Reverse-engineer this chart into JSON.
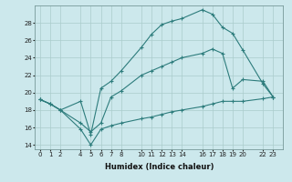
{
  "xlabel": "Humidex (Indice chaleur)",
  "background_color": "#cce8ec",
  "grid_color": "#aacccc",
  "line_color": "#2d7c7c",
  "x_ticks": [
    0,
    1,
    2,
    4,
    5,
    6,
    7,
    8,
    10,
    11,
    12,
    13,
    14,
    16,
    17,
    18,
    19,
    20,
    22,
    23
  ],
  "ylim": [
    13.5,
    30.0
  ],
  "xlim": [
    -0.5,
    24.0
  ],
  "yticks": [
    14,
    16,
    18,
    20,
    22,
    24,
    26,
    28
  ],
  "series": [
    {
      "x": [
        0,
        1,
        2,
        4,
        5,
        6,
        7,
        8,
        10,
        11,
        12,
        13,
        14,
        16,
        17,
        18,
        19,
        20,
        22,
        23
      ],
      "y": [
        19.2,
        18.7,
        18.0,
        19.0,
        15.2,
        20.5,
        21.3,
        22.5,
        25.2,
        26.7,
        27.8,
        28.2,
        28.5,
        29.5,
        29.0,
        27.5,
        26.8,
        24.9,
        21.0,
        19.5
      ]
    },
    {
      "x": [
        0,
        1,
        2,
        4,
        5,
        6,
        7,
        8,
        10,
        11,
        12,
        13,
        14,
        16,
        17,
        18,
        19,
        20,
        22,
        23
      ],
      "y": [
        19.2,
        18.7,
        18.0,
        16.5,
        15.5,
        16.5,
        19.5,
        20.2,
        22.0,
        22.5,
        23.0,
        23.5,
        24.0,
        24.5,
        25.0,
        24.5,
        20.5,
        21.5,
        21.3,
        19.5
      ]
    },
    {
      "x": [
        0,
        1,
        2,
        4,
        5,
        6,
        7,
        8,
        10,
        11,
        12,
        13,
        14,
        16,
        17,
        18,
        19,
        20,
        22,
        23
      ],
      "y": [
        19.2,
        18.7,
        18.0,
        15.8,
        14.0,
        15.8,
        16.2,
        16.5,
        17.0,
        17.2,
        17.5,
        17.8,
        18.0,
        18.4,
        18.7,
        19.0,
        19.0,
        19.0,
        19.3,
        19.5
      ]
    }
  ]
}
